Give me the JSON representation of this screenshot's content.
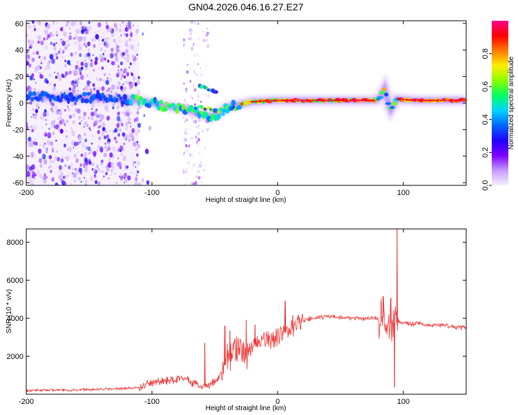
{
  "title": "GN04.2026.046.16.27.E27",
  "chart_data": [
    {
      "type": "heatmap",
      "name": "spectrogram",
      "xlabel": "Height of straight line (km)",
      "ylabel": "Frequency (Hz)",
      "xlim": [
        -200,
        150
      ],
      "ylim": [
        -62,
        62
      ],
      "xticks": [
        -200,
        -100,
        0,
        100
      ],
      "xtick_labels": [
        "-200",
        "-100",
        "0",
        "100"
      ],
      "yticks": [
        -60,
        -40,
        -20,
        0,
        20,
        40,
        60
      ],
      "ytick_labels": [
        "-60",
        "-40",
        "-20",
        "0",
        "20",
        "40",
        "60"
      ],
      "ridge": [
        {
          "x": -200,
          "y": 5
        },
        {
          "x": -175,
          "y": 4
        },
        {
          "x": -150,
          "y": 4
        },
        {
          "x": -125,
          "y": 3
        },
        {
          "x": -110,
          "y": 2
        },
        {
          "x": -100,
          "y": 0
        },
        {
          "x": -90,
          "y": -2
        },
        {
          "x": -75,
          "y": -4
        },
        {
          "x": -60,
          "y": -9
        },
        {
          "x": -50,
          "y": -10
        },
        {
          "x": -40,
          "y": -3
        },
        {
          "x": -30,
          "y": -1
        },
        {
          "x": -20,
          "y": 1
        },
        {
          "x": 0,
          "y": 2
        },
        {
          "x": 20,
          "y": 2
        },
        {
          "x": 40,
          "y": 2
        },
        {
          "x": 60,
          "y": 2
        },
        {
          "x": 78,
          "y": 2
        },
        {
          "x": 82,
          "y": 5
        },
        {
          "x": 85,
          "y": 11
        },
        {
          "x": 88,
          "y": 0
        },
        {
          "x": 90,
          "y": -5
        },
        {
          "x": 95,
          "y": 3
        },
        {
          "x": 110,
          "y": 2
        },
        {
          "x": 150,
          "y": 2
        }
      ],
      "secondary_branch": [
        {
          "x": -65,
          "y": -3
        },
        {
          "x": -55,
          "y": -4
        },
        {
          "x": -45,
          "y": -6
        },
        {
          "x": -35,
          "y": -3
        }
      ],
      "upper_branch": [
        {
          "x": -62,
          "y": 13
        },
        {
          "x": -55,
          "y": 11
        },
        {
          "x": -48,
          "y": 8
        }
      ],
      "noise_x_range": [
        -200,
        -110
      ],
      "noise_band_2_x_range": [
        -75,
        -55
      ]
    },
    {
      "type": "colorbar",
      "name": "amplitude-colorbar",
      "label": "Normalized spectral amplitude",
      "range": [
        0,
        1
      ],
      "ticks": [
        0.0,
        0.2,
        0.4,
        0.6,
        0.8
      ],
      "tick_labels": [
        "0.0",
        "0.2",
        "0.4",
        "0.6",
        "0.8"
      ],
      "colormap": [
        "#f6f0fa",
        "#c69cff",
        "#7a00ff",
        "#2200ff",
        "#0066ff",
        "#00d4ff",
        "#00ff66",
        "#88ff00",
        "#ffee00",
        "#ff7a00",
        "#ff0000",
        "#ff0088"
      ]
    },
    {
      "type": "line",
      "name": "snr-line",
      "xlabel": "Height of straight line (km)",
      "ylabel": "SNR (10 * v/v)",
      "xlim": [
        -200,
        150
      ],
      "ylim": [
        0,
        8700
      ],
      "xticks": [
        -200,
        -100,
        0,
        100
      ],
      "xtick_labels": [
        "-200",
        "-100",
        "0",
        "100"
      ],
      "yticks": [
        2000,
        4000,
        6000,
        8000
      ],
      "ytick_labels": [
        "2000",
        "4000",
        "6000",
        "8000"
      ],
      "color": "#ee3333",
      "envelope": [
        {
          "x": -200,
          "y": 200
        },
        {
          "x": -160,
          "y": 230
        },
        {
          "x": -130,
          "y": 280
        },
        {
          "x": -110,
          "y": 350
        },
        {
          "x": -100,
          "y": 600
        },
        {
          "x": -90,
          "y": 700
        },
        {
          "x": -80,
          "y": 800
        },
        {
          "x": -75,
          "y": 900
        },
        {
          "x": -70,
          "y": 650
        },
        {
          "x": -60,
          "y": 400
        },
        {
          "x": -50,
          "y": 600
        },
        {
          "x": -45,
          "y": 1100
        },
        {
          "x": -40,
          "y": 1800
        },
        {
          "x": -35,
          "y": 2300
        },
        {
          "x": -30,
          "y": 2400
        },
        {
          "x": -25,
          "y": 2100
        },
        {
          "x": -20,
          "y": 2600
        },
        {
          "x": -10,
          "y": 2900
        },
        {
          "x": 0,
          "y": 3000
        },
        {
          "x": 10,
          "y": 3400
        },
        {
          "x": 20,
          "y": 3900
        },
        {
          "x": 30,
          "y": 4000
        },
        {
          "x": 40,
          "y": 4100
        },
        {
          "x": 50,
          "y": 4050
        },
        {
          "x": 60,
          "y": 4000
        },
        {
          "x": 70,
          "y": 4000
        },
        {
          "x": 80,
          "y": 4000
        },
        {
          "x": 85,
          "y": 4050
        },
        {
          "x": 90,
          "y": 3700
        },
        {
          "x": 95,
          "y": 3800
        },
        {
          "x": 100,
          "y": 3750
        },
        {
          "x": 110,
          "y": 3700
        },
        {
          "x": 120,
          "y": 3650
        },
        {
          "x": 130,
          "y": 3600
        },
        {
          "x": 140,
          "y": 3550
        },
        {
          "x": 150,
          "y": 3450
        }
      ],
      "spikes": [
        {
          "x": -58,
          "y": 2700
        },
        {
          "x": -42,
          "y": 3600
        },
        {
          "x": -38,
          "y": 3350
        },
        {
          "x": -25,
          "y": 3900
        },
        {
          "x": -18,
          "y": 3650
        },
        {
          "x": 6,
          "y": 4900
        },
        {
          "x": 12,
          "y": 4150
        },
        {
          "x": 84,
          "y": 5150
        },
        {
          "x": 90,
          "y": 5050
        },
        {
          "x": 95,
          "y": 8700
        },
        {
          "x": 93,
          "y": 380
        }
      ]
    }
  ]
}
